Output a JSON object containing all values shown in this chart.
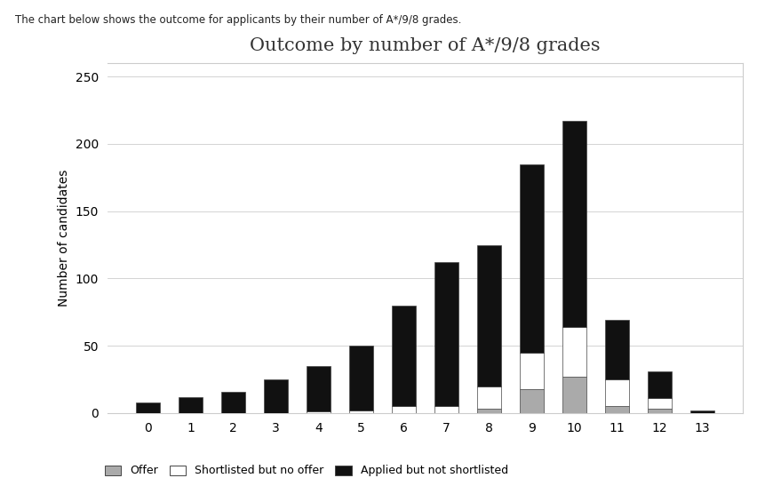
{
  "categories": [
    0,
    1,
    2,
    3,
    4,
    5,
    6,
    7,
    8,
    9,
    10,
    11,
    12,
    13
  ],
  "offer": [
    0,
    0,
    0,
    0,
    0,
    0,
    0,
    0,
    3,
    18,
    27,
    5,
    3,
    0
  ],
  "shortlisted_no_offer": [
    0,
    0,
    0,
    0,
    1,
    2,
    5,
    5,
    17,
    27,
    37,
    20,
    8,
    0
  ],
  "applied_not_shortlisted": [
    8,
    12,
    16,
    25,
    34,
    48,
    75,
    107,
    105,
    140,
    153,
    44,
    20,
    2
  ],
  "title": "Outcome by number of A*/9/8 grades",
  "ylabel": "Number of candidates",
  "ylim": [
    0,
    260
  ],
  "yticks": [
    0,
    50,
    100,
    150,
    200,
    250
  ],
  "color_offer": "#aaaaaa",
  "color_shortlisted": "#ffffff",
  "color_applied": "#111111",
  "legend_labels": [
    "Offer",
    "Shortlisted but no offer",
    "Applied but not shortlisted"
  ],
  "background_color": "#ffffff",
  "chart_background": "#ffffff",
  "subtitle": "The chart below shows the outcome for applicants by their number of A*/9/8 grades.",
  "bar_width": 0.55,
  "edge_color": "#444444",
  "border_color": "#cccccc",
  "grid_color": "#cccccc"
}
